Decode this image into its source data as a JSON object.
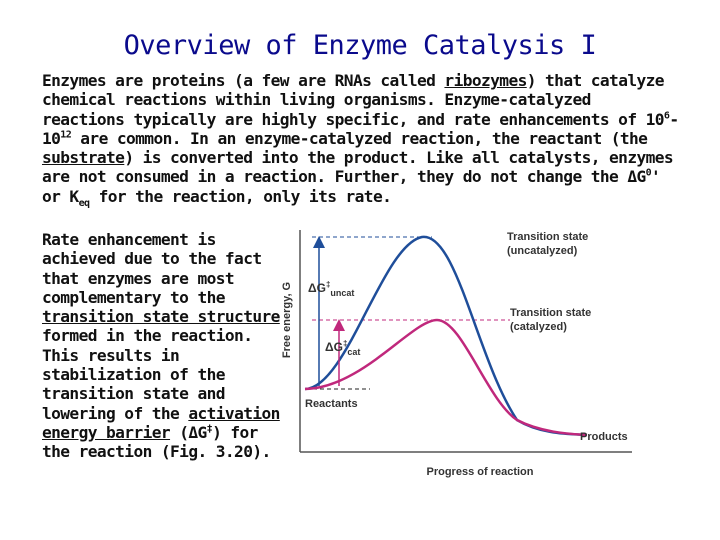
{
  "slide": {
    "title": "Overview of Enzyme Catalysis I"
  },
  "intro": {
    "p1": "Enzymes are proteins (a few are RNAs called ",
    "ribozymes": "ribozymes",
    "p2": ") that catalyze chemical reactions within living organisms. Enzyme-catalyzed reactions typically are highly specific, and rate enhancements of 10",
    "exp1": "6",
    "p3": "-10",
    "exp2": "12",
    "p4": " are common. In an enzyme-catalyzed reaction, the reactant (the ",
    "substrate": "substrate",
    "p5": ") is converted into the product. Like all catalysts, enzymes are not consumed in a reaction. Further, they do not change the ΔG",
    "g0_sup": "0",
    "p6": "' or K",
    "keq_sub": "eq",
    "p7": " for the reaction, only its rate."
  },
  "rate": {
    "p1": "Rate enhancement is achieved due to the fact that enzymes are most complementary to the ",
    "ts": "transition state structure",
    "p2": " formed in the reaction. This results in stabilization of the transition state and lowering of the ",
    "barrier": "activation energy barrier",
    "p3": " (ΔG",
    "dagger": "‡",
    "p4": ") for the reaction (Fig. 3.20)."
  },
  "diagram": {
    "y_axis_label": "Free energy, G",
    "x_axis_label": "Progress of reaction",
    "ts_uncat_line1": "Transition state",
    "ts_uncat_line2": "(uncatalyzed)",
    "ts_cat_line1": "Transition state",
    "ts_cat_line2": "(catalyzed)",
    "dg_uncat_main": "ΔG",
    "dg_uncat_sup": "‡",
    "dg_uncat_sub": "uncat",
    "dg_cat_main": "ΔG",
    "dg_cat_sup": "‡",
    "dg_cat_sub": "cat",
    "reactants": "Reactants",
    "products": "Products",
    "colors": {
      "uncatalyzed": "#1f4e9a",
      "catalyzed": "#c0287c",
      "axis": "#555555"
    }
  }
}
